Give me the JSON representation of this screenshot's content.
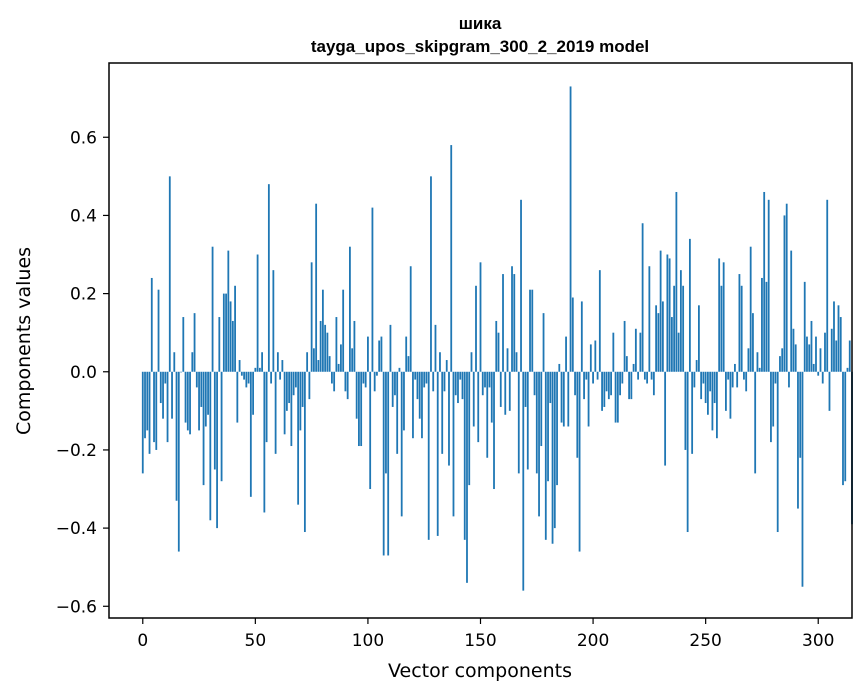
{
  "chart_data": {
    "type": "bar",
    "title": "шика",
    "subtitle": "tayga_upos_skipgram_300_2_2019 model",
    "xlabel": "Vector components",
    "ylabel": "Components values",
    "xlim": [
      -15,
      315
    ],
    "ylim": [
      -0.63,
      0.79
    ],
    "xticks": [
      0,
      50,
      100,
      150,
      200,
      250,
      300
    ],
    "yticks": [
      -0.6,
      -0.4,
      -0.2,
      0.0,
      0.2,
      0.4,
      0.6
    ],
    "ytick_labels": [
      "−0.6",
      "−0.4",
      "−0.2",
      "0.0",
      "0.2",
      "0.4",
      "0.6"
    ],
    "xtick_labels": [
      "0",
      "50",
      "100",
      "150",
      "200",
      "250",
      "300"
    ],
    "bar_color": "#1f77b4",
    "x_start": 0,
    "values": [
      -0.26,
      -0.17,
      -0.15,
      -0.21,
      0.24,
      -0.18,
      -0.2,
      0.21,
      -0.08,
      -0.12,
      -0.03,
      -0.18,
      0.5,
      -0.12,
      0.05,
      -0.33,
      -0.46,
      0.0,
      0.14,
      -0.13,
      -0.15,
      -0.16,
      0.05,
      0.15,
      -0.04,
      -0.15,
      -0.09,
      -0.29,
      -0.14,
      -0.11,
      -0.38,
      0.32,
      -0.25,
      -0.4,
      0.14,
      -0.28,
      0.2,
      0.2,
      0.31,
      0.18,
      0.13,
      0.22,
      -0.13,
      0.03,
      -0.01,
      -0.02,
      -0.04,
      -0.03,
      -0.32,
      -0.11,
      0.01,
      0.3,
      0.01,
      0.05,
      -0.36,
      -0.18,
      0.48,
      -0.03,
      0.26,
      -0.21,
      0.05,
      -0.02,
      0.03,
      -0.16,
      -0.1,
      -0.08,
      -0.19,
      -0.06,
      -0.04,
      -0.34,
      -0.15,
      -0.09,
      -0.41,
      0.05,
      -0.07,
      0.28,
      0.06,
      0.43,
      0.03,
      0.13,
      0.21,
      0.12,
      0.1,
      0.04,
      -0.03,
      -0.05,
      0.14,
      0.02,
      0.07,
      0.21,
      -0.05,
      -0.07,
      0.32,
      0.06,
      0.13,
      -0.12,
      -0.19,
      -0.19,
      -0.03,
      -0.04,
      0.09,
      -0.3,
      0.42,
      -0.05,
      -0.01,
      0.08,
      0.09,
      -0.47,
      -0.26,
      -0.47,
      0.12,
      -0.09,
      -0.06,
      -0.21,
      0.01,
      -0.37,
      -0.15,
      0.09,
      0.04,
      0.27,
      -0.17,
      -0.02,
      -0.07,
      -0.12,
      -0.17,
      -0.04,
      -0.03,
      -0.43,
      0.5,
      -0.05,
      0.12,
      -0.42,
      0.05,
      -0.21,
      -0.05,
      0.03,
      -0.24,
      0.58,
      -0.37,
      -0.06,
      -0.08,
      -0.02,
      -0.07,
      -0.43,
      -0.54,
      -0.29,
      0.05,
      -0.14,
      0.22,
      -0.18,
      0.28,
      -0.06,
      -0.04,
      -0.22,
      -0.04,
      -0.13,
      -0.3,
      0.13,
      0.1,
      -0.09,
      0.25,
      -0.11,
      0.06,
      -0.1,
      0.27,
      0.25,
      0.05,
      -0.26,
      0.44,
      -0.56,
      -0.09,
      -0.25,
      0.21,
      0.21,
      -0.06,
      -0.26,
      -0.37,
      -0.19,
      0.15,
      -0.43,
      -0.28,
      -0.08,
      -0.44,
      -0.4,
      -0.29,
      0.02,
      -0.13,
      -0.14,
      0.09,
      -0.14,
      0.73,
      0.19,
      -0.06,
      -0.22,
      -0.46,
      0.18,
      -0.07,
      -0.02,
      -0.14,
      0.07,
      -0.03,
      0.08,
      -0.02,
      0.26,
      -0.1,
      -0.09,
      -0.05,
      -0.07,
      -0.06,
      0.1,
      -0.13,
      -0.13,
      -0.06,
      -0.03,
      0.13,
      0.04,
      -0.07,
      -0.07,
      0.02,
      0.11,
      -0.02,
      0.1,
      0.38,
      -0.02,
      -0.03,
      0.27,
      -0.02,
      -0.06,
      0.17,
      0.15,
      0.31,
      0.18,
      -0.24,
      0.3,
      0.29,
      0.14,
      0.22,
      0.46,
      0.1,
      0.26,
      0.22,
      -0.2,
      -0.41,
      0.34,
      -0.21,
      -0.04,
      0.03,
      0.17,
      -0.07,
      -0.03,
      -0.08,
      -0.11,
      -0.05,
      -0.15,
      -0.08,
      -0.17,
      0.29,
      0.22,
      0.28,
      -0.1,
      -0.02,
      -0.12,
      -0.04,
      0.02,
      -0.04,
      0.25,
      0.22,
      -0.02,
      -0.05,
      0.06,
      0.32,
      0.15,
      -0.26,
      0.05,
      0.01,
      0.24,
      0.46,
      0.23,
      0.44,
      -0.18,
      -0.14,
      -0.03,
      -0.41,
      0.04,
      0.06,
      0.4,
      0.43,
      -0.04,
      0.31,
      0.11,
      0.07,
      -0.35,
      -0.22,
      -0.55,
      0.23,
      0.09,
      0.07,
      0.13,
      0.02,
      0.09,
      -0.01,
      0.06,
      -0.03,
      0.1,
      0.44,
      -0.1,
      0.11,
      0.18,
      0.08,
      0.17,
      0.14,
      -0.29,
      -0.28,
      0.01,
      0.08,
      -0.39
    ]
  }
}
